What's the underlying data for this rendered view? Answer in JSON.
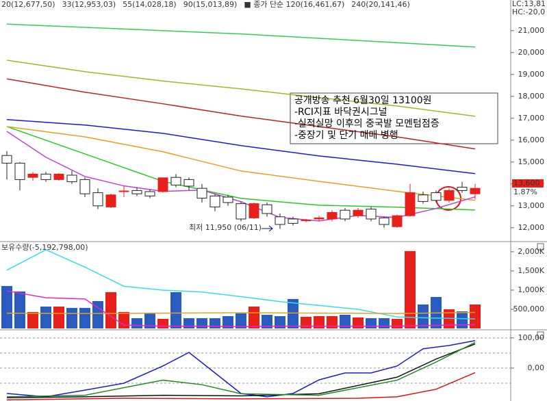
{
  "chart_data": [
    {
      "type": "candlestick",
      "corner_labels": [
        "LC:13,81",
        "HC:-20,0"
      ],
      "ylim": [
        11400,
        22400
      ],
      "yticks": [
        {
          "value": 12000,
          "label": "12,000"
        },
        {
          "value": 13000,
          "label": "13,000"
        },
        {
          "value": 14000,
          "label": "14,000"
        },
        {
          "value": 15000,
          "label": "15,000"
        },
        {
          "value": 16000,
          "label": "16,000"
        },
        {
          "value": 17000,
          "label": "17,000"
        },
        {
          "value": 18000,
          "label": "18,000"
        },
        {
          "value": 19000,
          "label": "19,000"
        },
        {
          "value": 20000,
          "label": "20,000"
        },
        {
          "value": 21000,
          "label": "21,000"
        }
      ],
      "up_color": "#e8201c",
      "down_color": "#ffffff",
      "candles": {
        "open": [
          15300,
          14950,
          14300,
          14450,
          14200,
          14400,
          14200,
          13600,
          12950,
          13650,
          13700,
          13650,
          13650,
          14300,
          14200,
          13800,
          13450,
          13400,
          13100,
          12450,
          13050,
          12500,
          12400,
          12350,
          12400,
          12400,
          12800,
          12550,
          12850,
          12450,
          12050,
          12550,
          13500,
          13600,
          13250,
          13850,
          13550
        ],
        "high": [
          15500,
          15000,
          14550,
          14550,
          14500,
          14600,
          14300,
          13800,
          13550,
          13900,
          13850,
          13750,
          14300,
          14450,
          14300,
          14000,
          13550,
          13500,
          13200,
          13150,
          13150,
          12650,
          12500,
          12400,
          12550,
          12800,
          12900,
          12900,
          12950,
          12500,
          12600,
          14000,
          13650,
          13700,
          13800,
          14100,
          14000
        ],
        "low": [
          14200,
          13700,
          14150,
          14100,
          14150,
          14000,
          13400,
          12850,
          12900,
          13400,
          13450,
          13350,
          13600,
          13850,
          13700,
          13150,
          12750,
          13000,
          12300,
          12400,
          12500,
          11950,
          12100,
          12250,
          12300,
          12300,
          12300,
          12450,
          12300,
          12000,
          12000,
          12500,
          13100,
          13150,
          13150,
          13600,
          13300
        ],
        "close": [
          14950,
          14200,
          14450,
          14200,
          14450,
          14100,
          13550,
          13000,
          13500,
          13680,
          13550,
          13450,
          14280,
          13950,
          13900,
          13350,
          12950,
          13150,
          12400,
          13100,
          12650,
          12150,
          12200,
          12350,
          12450,
          12700,
          12400,
          12800,
          12400,
          12150,
          12550,
          13600,
          13200,
          13250,
          13700,
          13700,
          13800
        ]
      },
      "series": [
        {
          "name": "20(12,677,50)",
          "color": "#22cc22",
          "x": [
            0,
            6,
            12,
            18,
            24,
            30,
            36
          ],
          "values": [
            16620,
            15370,
            14120,
            13340,
            13030,
            12940,
            12810
          ]
        },
        {
          "name": "33(12,953,03)",
          "color": "#e8a020",
          "x": [
            0,
            6,
            12,
            18,
            24,
            30,
            36
          ],
          "values": [
            16620,
            16150,
            15470,
            14590,
            14120,
            13660,
            13250
          ]
        },
        {
          "name": "55(14,028,18)",
          "color": "#1a1ad0",
          "x": [
            0,
            6,
            12,
            18,
            24,
            30,
            36
          ],
          "values": [
            16940,
            16690,
            16310,
            15750,
            15280,
            14900,
            14470
          ]
        },
        {
          "name": "90(15,013,89)",
          "color": "#c02020",
          "x": [
            0,
            6,
            12,
            18,
            24,
            30,
            36
          ],
          "values": [
            18800,
            18190,
            17660,
            17100,
            16620,
            16150,
            15600
          ]
        },
        {
          "name": "■ 종가 단순 120(16,461,67)",
          "color": "#99bb22",
          "x": [
            0,
            6,
            12,
            18,
            24,
            30,
            36
          ],
          "values": [
            19650,
            19125,
            18700,
            18340,
            17940,
            17560,
            17090
          ]
        },
        {
          "name": "240(20,141,46)",
          "color": "#33cc55",
          "x": [
            0,
            6,
            12,
            18,
            24,
            30,
            36
          ],
          "values": [
            21300,
            21150,
            21000,
            20850,
            20650,
            20450,
            20250
          ]
        },
        {
          "color": "#c040d0",
          "x": [
            0,
            3,
            6,
            9,
            12,
            15,
            18,
            21,
            24,
            27,
            30,
            33,
            36
          ],
          "values": [
            16400,
            15220,
            14340,
            13910,
            13660,
            13720,
            13190,
            12470,
            12310,
            12560,
            12470,
            12880,
            13410
          ]
        }
      ],
      "annotation": [
        "공개방송 추천 6월30일 13100원",
        "-RCI지표 바닥권시그널",
        "-실적실망 이후의 중국발 모멘텀점증",
        "-중장기 및 단기 매매 병행"
      ],
      "low_note": "최저 11,950 (06/11)",
      "price_label": "13,600",
      "change_label": "1.87%"
    },
    {
      "type": "bar",
      "title": "보유수량(-5,192,798,00)",
      "ylim": [
        0,
        2230000
      ],
      "yticks": [
        {
          "value": 500000,
          "label": "500,000"
        },
        {
          "value": 1000000,
          "label": "1,000K"
        },
        {
          "value": 1500000,
          "label": "1,500K"
        },
        {
          "value": 2000000,
          "label": "2,000K"
        }
      ],
      "up_color": "#e8201c",
      "down_color": "#2a5cc0",
      "values": [
        1107000,
        964000,
        429000,
        571000,
        571000,
        536000,
        536000,
        714000,
        946000,
        429000,
        268000,
        411000,
        250000,
        946000,
        268000,
        268000,
        268000,
        321000,
        393000,
        571000,
        357000,
        321000,
        768000,
        304000,
        321000,
        321000,
        357000,
        286000,
        268000,
        268000,
        250000,
        2018000,
        625000,
        821000,
        500000,
        446000,
        625000
      ],
      "series": [
        {
          "color": "#33ddee",
          "x": [
            0,
            3,
            6,
            9,
            12,
            15,
            18,
            21,
            24,
            27,
            30,
            33,
            36
          ],
          "values": [
            1520000,
            2050000,
            1600000,
            1100000,
            1000000,
            950000,
            830000,
            700000,
            600000,
            500000,
            300000,
            270000,
            250000
          ]
        },
        {
          "color": "#ee22cc",
          "x": [
            0,
            3,
            6,
            9,
            12,
            15,
            18,
            21,
            24,
            27,
            30,
            33,
            36
          ],
          "values": [
            980000,
            800000,
            770000,
            90000,
            60000,
            60000,
            50000,
            60000,
            60000,
            60000,
            60000,
            80000,
            100000
          ]
        },
        {
          "color": "#e8a020",
          "x": [
            0,
            6,
            12,
            18,
            24,
            30,
            36
          ],
          "values": [
            400000,
            390000,
            400000,
            410000,
            400000,
            390000,
            420000
          ]
        }
      ]
    },
    {
      "type": "line",
      "ylim": [
        -109,
        120
      ],
      "yticks": [
        {
          "value": 100,
          "label": "100,00"
        },
        {
          "value": 0,
          "label": "0,00"
        }
      ],
      "grid_values": [
        100,
        50,
        0,
        -50
      ],
      "series": [
        {
          "color": "#1a1ad0",
          "x": [
            0,
            3,
            6,
            9,
            12,
            14,
            16,
            18,
            20,
            22,
            24,
            26,
            28,
            30,
            32,
            34,
            36
          ],
          "values": [
            -84,
            -95,
            -73,
            -50,
            7,
            52,
            -16,
            -84,
            -95,
            -84,
            -39,
            -16,
            -16,
            7,
            64,
            75,
            91
          ]
        },
        {
          "color": "#111111",
          "x": [
            0,
            6,
            12,
            18,
            24,
            30,
            33,
            36
          ],
          "values": [
            -98,
            -95,
            -90,
            -92,
            -85,
            -30,
            30,
            80
          ]
        },
        {
          "color": "#228822",
          "x": [
            0,
            6,
            12,
            15,
            18,
            24,
            30,
            33,
            36
          ],
          "values": [
            -95,
            -90,
            -40,
            -55,
            -85,
            -90,
            -40,
            20,
            85
          ]
        },
        {
          "color": "#dd1111",
          "x": [
            0,
            9,
            18,
            27,
            30,
            33,
            36
          ],
          "values": [
            -105,
            -100,
            -102,
            -100,
            -95,
            -70,
            -15
          ]
        }
      ]
    }
  ]
}
